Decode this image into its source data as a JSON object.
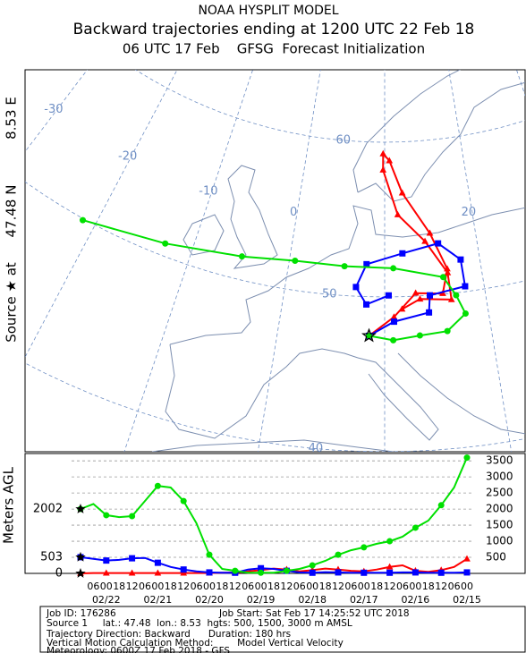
{
  "header": {
    "model": "NOAA HYSPLIT MODEL",
    "title": "Backward trajectories ending at 1200 UTC 22 Feb 18",
    "subtitle": "06 UTC 17 Feb    GFSG  Forecast Initialization",
    "source_label": [
      "Source ★ at",
      "47.48 N",
      "8.53 E"
    ]
  },
  "map": {
    "type": "trajectory-map",
    "source": {
      "lat": 47.48,
      "lon": 8.53
    },
    "meridians": [
      -40,
      -30,
      -20,
      -10,
      0,
      10,
      20,
      30,
      40
    ],
    "parallels": [
      30,
      40,
      50,
      60,
      70
    ],
    "lon_labels": [
      -30,
      -20,
      -10,
      0,
      20
    ],
    "lat_labels": [
      60,
      50,
      40
    ],
    "trajectories": [
      {
        "color": "#ff0000",
        "marker": "triangle",
        "lat": [
          47.48,
          48.7,
          50.2,
          50.05,
          51.6,
          54.0,
          56.7,
          58.8,
          59.25,
          58.2,
          55.3,
          53.5,
          51.35,
          49.6,
          49.8,
          49.2
        ],
        "lon": [
          8.53,
          10.9,
          13.1,
          15.8,
          16.5,
          15.0,
          12.1,
          10.6,
          9.8,
          9.8,
          11.5,
          14.4,
          16.5,
          16.6,
          13.5,
          11.7
        ]
      },
      {
        "color": "#0000ff",
        "marker": "square",
        "lat": [
          47.48,
          48.4,
          48.9,
          50.0,
          50.35,
          52.1,
          53.3,
          52.8,
          52.1,
          50.6,
          49.5,
          50.1
        ],
        "lon": [
          8.53,
          10.9,
          14.3,
          14.5,
          18.1,
          18.0,
          15.8,
          11.9,
          8.1,
          7.1,
          8.2,
          10.4
        ]
      },
      {
        "color": "#00e000",
        "marker": "circle",
        "lat": [
          47.48,
          47.2,
          47.45,
          47.6,
          48.6,
          49.85,
          51.1,
          51.85,
          51.9,
          51.9,
          51.5,
          50.8,
          49.9
        ],
        "lon": [
          8.53,
          10.8,
          13.3,
          15.9,
          17.8,
          17.1,
          16.0,
          10.9,
          5.8,
          0.6,
          -4.9,
          -12.8,
          -21.3
        ]
      }
    ]
  },
  "height_chart": {
    "type": "line",
    "ylabel": "Meters AGL",
    "categories": [
      null,
      "06",
      "00",
      "18",
      "12",
      "06",
      "00",
      "18",
      "12",
      "06",
      "00",
      "18",
      "12",
      "06",
      "00",
      "18",
      "12",
      "06",
      "00",
      "18",
      "12",
      "06",
      "00",
      "18",
      "12",
      "06",
      "00",
      "18",
      "12",
      "06",
      "00"
    ],
    "dates": [
      null,
      null,
      "02/22",
      null,
      null,
      null,
      "02/21",
      null,
      null,
      null,
      "02/20",
      null,
      null,
      null,
      "02/19",
      null,
      null,
      null,
      "02/18",
      null,
      null,
      null,
      "02/17",
      null,
      null,
      null,
      "02/16",
      null,
      null,
      null,
      "02/15"
    ],
    "ylim": [
      0,
      3700
    ],
    "yticks": [
      500,
      1000,
      1500,
      2000,
      2500,
      3000,
      3500
    ],
    "series": [
      {
        "color": "#ff0000",
        "marker": "triangle",
        "values": [
          0,
          10,
          10,
          10,
          10,
          10,
          10,
          10,
          10,
          10,
          10,
          20,
          30,
          60,
          100,
          150,
          120,
          60,
          100,
          150,
          120,
          80,
          60,
          120,
          200,
          250,
          80,
          50,
          100,
          200,
          450
        ]
      },
      {
        "color": "#0000ff",
        "marker": "square",
        "values": [
          503,
          450,
          400,
          420,
          470,
          480,
          330,
          200,
          120,
          60,
          30,
          20,
          20,
          120,
          160,
          140,
          80,
          30,
          20,
          40,
          30,
          20,
          20,
          20,
          20,
          30,
          30,
          20,
          20,
          20,
          30
        ]
      },
      {
        "color": "#00e000",
        "marker": "circle",
        "values": [
          2002,
          2160,
          1810,
          1750,
          1780,
          2250,
          2720,
          2670,
          2250,
          1560,
          580,
          140,
          80,
          20,
          20,
          20,
          80,
          140,
          250,
          390,
          580,
          720,
          810,
          920,
          1000,
          1140,
          1420,
          1640,
          2120,
          2670,
          3600
        ]
      }
    ]
  },
  "info": {
    "job_id": "Job ID: 176286",
    "job_start": "Job Start: Sat Feb 17 14:25:52 UTC 2018",
    "source": "Source 1     lat.: 47.48  lon.: 8.53  hgts: 500, 1500, 3000 m AMSL",
    "direction": "Trajectory Direction: Backward      Duration: 180 hrs",
    "vertical": "Vertical Motion Calculation Method:        Model Vertical Velocity",
    "meteorology": "Meteorology: 0600Z 17 Feb 2018 - GFS"
  }
}
